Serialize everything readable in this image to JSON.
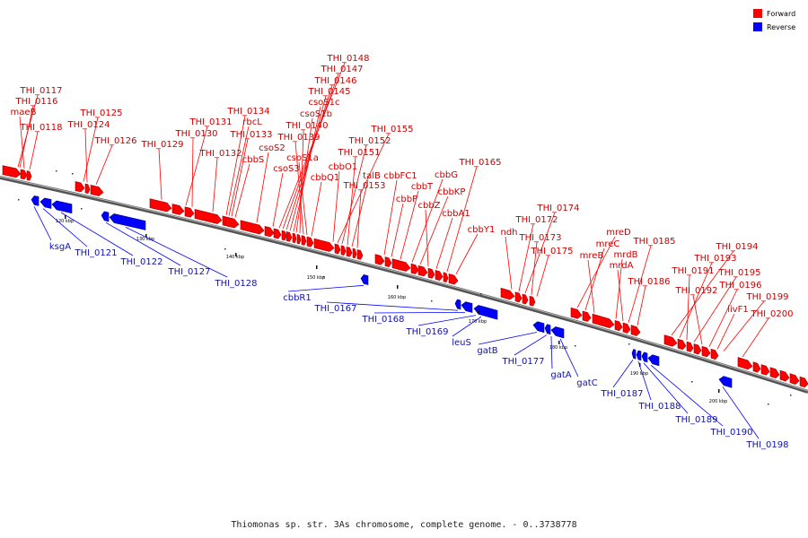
{
  "legend": {
    "forward_label": "Forward",
    "reverse_label": "Reverse",
    "forward_color": "#ff0000",
    "reverse_color": "#0000ff"
  },
  "caption": "Thiomonas sp. str. 3As chromosome, complete genome. - 0..3738778",
  "ticks": [
    "120 kbp",
    "130 kbp",
    "140 kbp",
    "150 kbp",
    "160 kbp",
    "170 kbp",
    "180 kbp",
    "190 kbp",
    "200 kbp"
  ],
  "forward_labels": [
    "THI_0117",
    "THI_0116",
    "maeB",
    "THI_0118",
    "THI_0125",
    "THI_0124",
    "THI_0126",
    "THI_0129",
    "THI_0131",
    "THI_0130",
    "THI_0132",
    "THI_0134",
    "rbcL",
    "THI_0133",
    "cbbS",
    "csoS2",
    "csoS3",
    "THI_0148",
    "THI_0147",
    "THI_0146",
    "THI_0145",
    "csoS1c",
    "csoS1b",
    "THI_0140",
    "THI_0139",
    "csoS1a",
    "cbbQ1",
    "cbbO1",
    "THI_0155",
    "THI_0152",
    "THI_0151",
    "talB",
    "THI_0153",
    "cbbFC1",
    "cbbP",
    "cbbT",
    "cbbG",
    "cbbKP",
    "cbbZ",
    "cbbA1",
    "THI_0165",
    "cbbY1",
    "ndh",
    "THI_0172",
    "THI_0174",
    "THI_0173",
    "THI_0175",
    "mreD",
    "mreC",
    "mreB",
    "mrdB",
    "mrdA",
    "THI_0185",
    "THI_0186",
    "THI_0194",
    "THI_0193",
    "THI_0191",
    "THI_0195",
    "THI_0192",
    "THI_0196",
    "livF1",
    "THI_0199",
    "THI_0200"
  ],
  "reverse_labels": [
    "ksgA",
    "THI_0121",
    "THI_0122",
    "THI_0127",
    "THI_0128",
    "cbbR1",
    "THI_0167",
    "THI_0168",
    "THI_0169",
    "leuS",
    "gatB",
    "THI_0177",
    "gatA",
    "gatC",
    "THI_0187",
    "THI_0188",
    "THI_0189",
    "THI_0190",
    "THI_0198"
  ]
}
